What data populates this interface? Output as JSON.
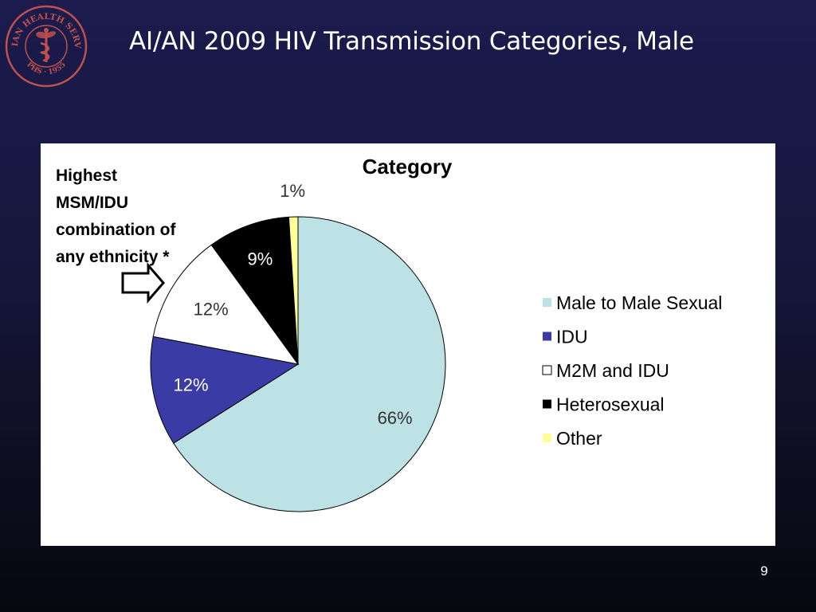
{
  "slide": {
    "title": "AI/AN 2009 HIV Transmission Categories, Male",
    "page_number": "9",
    "logo": {
      "text_top": "INDIAN HEALTH SERVICE",
      "text_bottom": "PHS · 1955",
      "color": "#c0504d"
    }
  },
  "annotation": {
    "lines": [
      "Highest",
      "MSM/IDU",
      "combination of",
      "any ethnicity *"
    ]
  },
  "chart_data": {
    "type": "pie",
    "title": "Category",
    "legend_position": "right",
    "start_angle_deg": 0,
    "direction": "clockwise",
    "slices": [
      {
        "label": "Male to Male Sexual",
        "value": 66,
        "display": "66%",
        "color": "#bde2e5"
      },
      {
        "label": "IDU",
        "value": 12,
        "display": "12%",
        "color": "#3a3ba5"
      },
      {
        "label": "M2M and IDU",
        "value": 12,
        "display": "12%",
        "color": "#ffffff"
      },
      {
        "label": "Heterosexual",
        "value": 9,
        "display": "9%",
        "color": "#000000"
      },
      {
        "label": "Other",
        "value": 1,
        "display": "1%",
        "color": "#ffff99"
      }
    ]
  }
}
